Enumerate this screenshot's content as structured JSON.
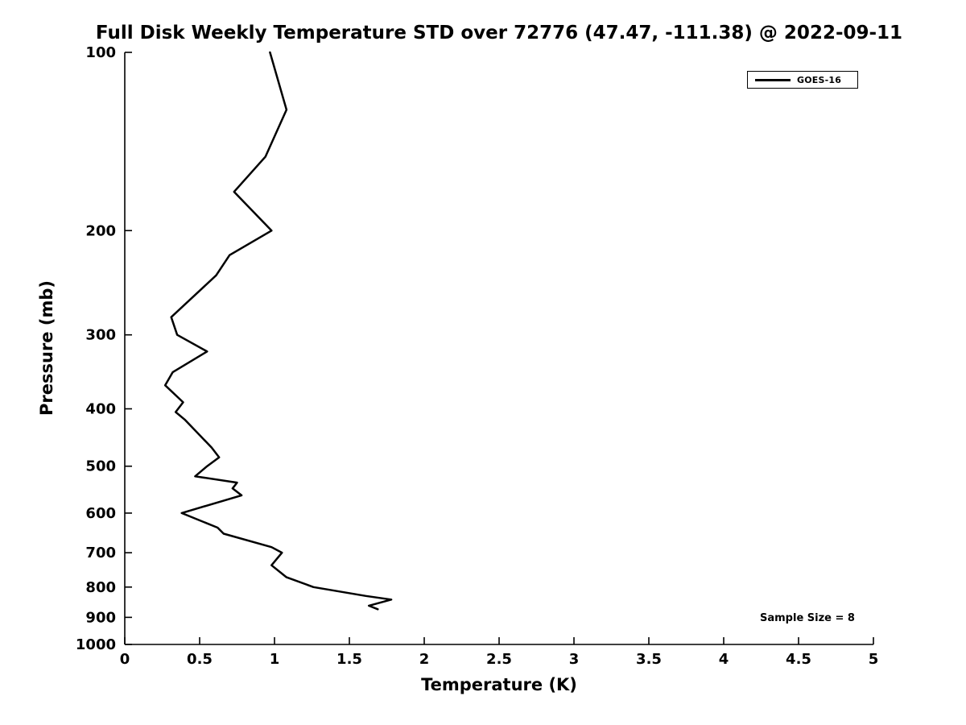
{
  "chart_data": {
    "type": "line",
    "title": "Full Disk Weekly Temperature STD over 72776 (47.47, -111.38) @ 2022-09-11",
    "xlabel": "Temperature (K)",
    "ylabel": "Pressure (mb)",
    "xlim": [
      0,
      5
    ],
    "ylim": [
      100,
      1000
    ],
    "y_scale": "log",
    "y_inverted": true,
    "grid": false,
    "x_ticks": [
      0,
      0.5,
      1,
      1.5,
      2,
      2.5,
      3,
      3.5,
      4,
      4.5,
      5
    ],
    "y_ticks": [
      100,
      200,
      300,
      400,
      500,
      600,
      700,
      800,
      900,
      1000
    ],
    "line_color": "#000000",
    "line_width": 2.5,
    "legend": {
      "position": "top-right",
      "entries": [
        {
          "label": "GOES-16",
          "color": "#000000"
        }
      ]
    },
    "annotation": "Sample Size = 8",
    "series": [
      {
        "name": "GOES-16",
        "points_format": "[temperature_K, pressure_mb]",
        "points": [
          [
            0.97,
            100
          ],
          [
            1.08,
            125
          ],
          [
            0.94,
            150
          ],
          [
            0.73,
            172
          ],
          [
            0.98,
            200
          ],
          [
            0.7,
            220
          ],
          [
            0.61,
            238
          ],
          [
            0.31,
            280
          ],
          [
            0.35,
            300
          ],
          [
            0.55,
            320
          ],
          [
            0.32,
            347
          ],
          [
            0.27,
            365
          ],
          [
            0.39,
            390
          ],
          [
            0.34,
            405
          ],
          [
            0.4,
            417
          ],
          [
            0.58,
            465
          ],
          [
            0.63,
            483
          ],
          [
            0.55,
            500
          ],
          [
            0.47,
            520
          ],
          [
            0.75,
            533
          ],
          [
            0.72,
            545
          ],
          [
            0.78,
            560
          ],
          [
            0.38,
            600
          ],
          [
            0.62,
            635
          ],
          [
            0.66,
            650
          ],
          [
            0.98,
            685
          ],
          [
            1.05,
            700
          ],
          [
            0.98,
            735
          ],
          [
            1.08,
            770
          ],
          [
            1.26,
            800
          ],
          [
            1.61,
            828
          ],
          [
            1.78,
            840
          ],
          [
            1.63,
            860
          ],
          [
            1.69,
            872
          ]
        ]
      }
    ]
  }
}
